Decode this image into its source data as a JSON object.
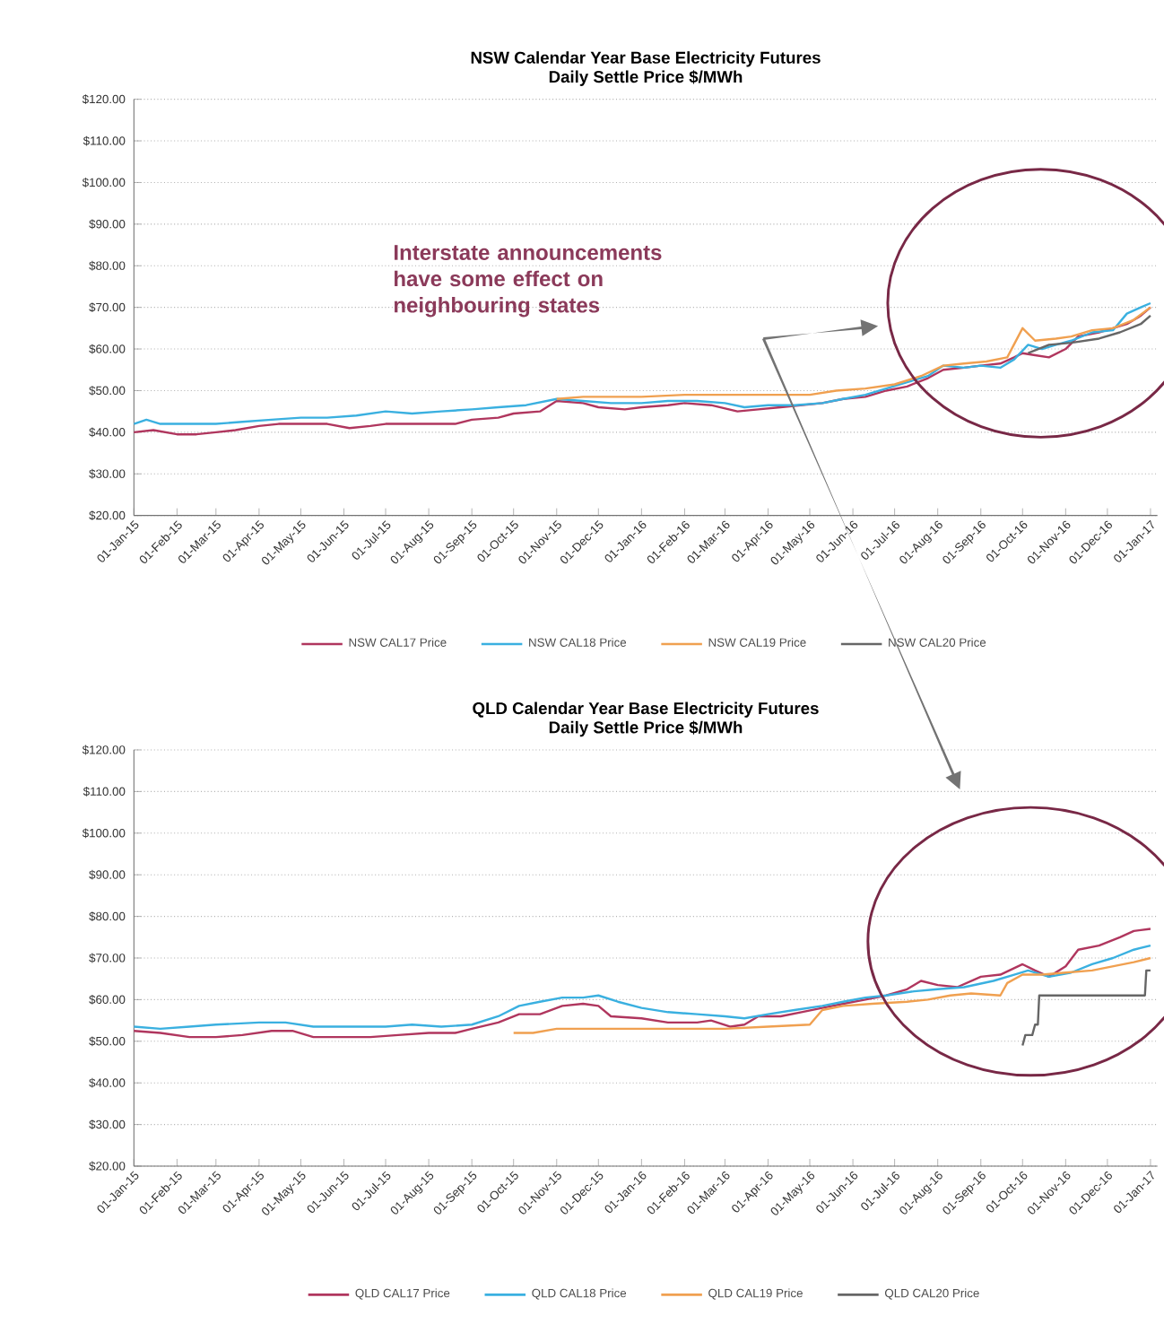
{
  "chart_data": [
    {
      "type": "line",
      "title": "NSW Calendar Year Base Electricity Futures",
      "subtitle": "Daily Settle Price $/MWh",
      "annotations": [
        "Interstate announcements have some effect on neighbouring states"
      ],
      "xlim": [
        "2015-01-01",
        "2017-01-06"
      ],
      "xticks": [
        {
          "value": "2015-01-01",
          "label": "01-Jan-15"
        },
        {
          "value": "2015-02-01",
          "label": "01-Feb-15"
        },
        {
          "value": "2015-03-01",
          "label": "01-Mar-15"
        },
        {
          "value": "2015-04-01",
          "label": "01-Apr-15"
        },
        {
          "value": "2015-05-01",
          "label": "01-May-15"
        },
        {
          "value": "2015-06-01",
          "label": "01-Jun-15"
        },
        {
          "value": "2015-07-01",
          "label": "01-Jul-15"
        },
        {
          "value": "2015-08-01",
          "label": "01-Aug-15"
        },
        {
          "value": "2015-09-01",
          "label": "01-Sep-15"
        },
        {
          "value": "2015-10-01",
          "label": "01-Oct-15"
        },
        {
          "value": "2015-11-01",
          "label": "01-Nov-15"
        },
        {
          "value": "2015-12-01",
          "label": "01-Dec-15"
        },
        {
          "value": "2016-01-01",
          "label": "01-Jan-16"
        },
        {
          "value": "2016-02-01",
          "label": "01-Feb-16"
        },
        {
          "value": "2016-03-01",
          "label": "01-Mar-16"
        },
        {
          "value": "2016-04-01",
          "label": "01-Apr-16"
        },
        {
          "value": "2016-05-01",
          "label": "01-May-16"
        },
        {
          "value": "2016-06-01",
          "label": "01-Jun-16"
        },
        {
          "value": "2016-07-01",
          "label": "01-Jul-16"
        },
        {
          "value": "2016-08-01",
          "label": "01-Aug-16"
        },
        {
          "value": "2016-09-01",
          "label": "01-Sep-16"
        },
        {
          "value": "2016-10-01",
          "label": "01-Oct-16"
        },
        {
          "value": "2016-11-01",
          "label": "01-Nov-16"
        },
        {
          "value": "2016-12-01",
          "label": "01-Dec-16"
        },
        {
          "value": "2017-01-01",
          "label": "01-Jan-17"
        }
      ],
      "ylim": [
        20,
        120
      ],
      "yticks": [
        {
          "value": 20,
          "label": "$20.00"
        },
        {
          "value": 30,
          "label": "$30.00"
        },
        {
          "value": 40,
          "label": "$40.00"
        },
        {
          "value": 50,
          "label": "$50.00"
        },
        {
          "value": 60,
          "label": "$60.00"
        },
        {
          "value": 70,
          "label": "$70.00"
        },
        {
          "value": 80,
          "label": "$80.00"
        },
        {
          "value": 90,
          "label": "$90.00"
        },
        {
          "value": 100,
          "label": "$100.00"
        },
        {
          "value": 110,
          "label": "$110.00"
        },
        {
          "value": 120,
          "label": "$120.00"
        }
      ],
      "grid": "y",
      "legend": "bottom",
      "marker": "none",
      "line_style": "solid",
      "series": [
        {
          "name": "NSW CAL17 Price",
          "color": "#b0365e",
          "x": [
            "2015-01-01",
            "2015-01-15",
            "2015-02-01",
            "2015-02-15",
            "2015-03-01",
            "2015-03-15",
            "2015-04-01",
            "2015-04-15",
            "2015-05-01",
            "2015-05-20",
            "2015-06-05",
            "2015-06-20",
            "2015-07-01",
            "2015-07-20",
            "2015-08-01",
            "2015-08-20",
            "2015-09-01",
            "2015-09-20",
            "2015-10-01",
            "2015-10-20",
            "2015-11-01",
            "2015-11-20",
            "2015-12-01",
            "2015-12-20",
            "2016-01-01",
            "2016-01-20",
            "2016-02-01",
            "2016-02-20",
            "2016-03-10",
            "2016-03-25",
            "2016-04-10",
            "2016-04-25",
            "2016-05-10",
            "2016-05-25",
            "2016-06-10",
            "2016-06-25",
            "2016-07-10",
            "2016-07-25",
            "2016-08-05",
            "2016-08-20",
            "2016-09-01",
            "2016-09-15",
            "2016-09-25",
            "2016-10-01",
            "2016-10-10",
            "2016-10-20",
            "2016-11-01",
            "2016-11-10",
            "2016-11-25",
            "2016-12-05",
            "2016-12-15",
            "2016-12-25",
            "2017-01-01"
          ],
          "values": [
            40,
            40.5,
            39.5,
            39.5,
            40,
            40.5,
            41.5,
            42,
            42,
            42,
            41,
            41.5,
            42,
            42,
            42,
            42,
            43,
            43.5,
            44.5,
            45,
            47.5,
            47,
            46,
            45.5,
            46,
            46.5,
            47,
            46.5,
            45,
            45.5,
            46,
            46.5,
            47,
            48,
            48.5,
            50,
            51,
            53,
            55,
            55.5,
            56,
            56.5,
            58,
            59,
            58.5,
            58,
            60,
            63,
            64,
            65,
            66,
            68,
            70
          ]
        },
        {
          "name": "NSW CAL18 Price",
          "color": "#3ab0e0",
          "x": [
            "2015-01-01",
            "2015-01-10",
            "2015-01-20",
            "2015-02-10",
            "2015-03-01",
            "2015-03-20",
            "2015-04-10",
            "2015-05-01",
            "2015-05-20",
            "2015-06-10",
            "2015-07-01",
            "2015-07-20",
            "2015-08-10",
            "2015-09-01",
            "2015-09-20",
            "2015-10-10",
            "2015-11-01",
            "2015-11-20",
            "2015-12-10",
            "2016-01-01",
            "2016-01-20",
            "2016-02-10",
            "2016-03-01",
            "2016-03-15",
            "2016-04-01",
            "2016-04-20",
            "2016-05-10",
            "2016-05-25",
            "2016-06-10",
            "2016-06-25",
            "2016-07-10",
            "2016-07-25",
            "2016-08-05",
            "2016-08-20",
            "2016-09-01",
            "2016-09-15",
            "2016-09-25",
            "2016-10-05",
            "2016-10-15",
            "2016-10-25",
            "2016-11-05",
            "2016-11-20",
            "2016-12-05",
            "2016-12-15",
            "2016-12-25",
            "2017-01-01"
          ],
          "values": [
            42,
            43,
            42,
            42,
            42,
            42.5,
            43,
            43.5,
            43.5,
            44,
            45,
            44.5,
            45,
            45.5,
            46,
            46.5,
            48,
            47.5,
            47,
            47,
            47.5,
            47.5,
            47,
            46,
            46.5,
            46.5,
            47,
            48,
            49,
            50.5,
            52,
            53.5,
            56,
            55.5,
            56,
            55.5,
            57.5,
            61,
            60,
            61,
            62,
            64,
            64.5,
            68.5,
            70,
            71
          ]
        },
        {
          "name": "NSW CAL19 Price",
          "color": "#f0a050",
          "x": [
            "2015-11-01",
            "2015-11-20",
            "2016-01-01",
            "2016-02-01",
            "2016-03-01",
            "2016-04-01",
            "2016-05-01",
            "2016-05-20",
            "2016-06-10",
            "2016-07-01",
            "2016-07-20",
            "2016-08-05",
            "2016-08-20",
            "2016-09-05",
            "2016-09-20",
            "2016-10-01",
            "2016-10-10",
            "2016-10-25",
            "2016-11-05",
            "2016-11-20",
            "2016-12-05",
            "2016-12-20",
            "2017-01-01"
          ],
          "values": [
            48,
            48.5,
            48.5,
            49,
            49,
            49,
            49,
            50,
            50.5,
            51.5,
            53.5,
            56,
            56.5,
            57,
            58,
            65,
            62,
            62.5,
            63,
            64.5,
            65,
            67,
            70
          ]
        },
        {
          "name": "NSW CAL20 Price",
          "color": "#666666",
          "x": [
            "2016-10-05",
            "2016-10-20",
            "2016-11-05",
            "2016-11-25",
            "2016-12-10",
            "2016-12-25",
            "2017-01-01"
          ],
          "values": [
            59,
            61,
            61.5,
            62.5,
            64,
            66,
            68
          ]
        }
      ]
    },
    {
      "type": "line",
      "title": "QLD Calendar Year Base Electricity Futures",
      "subtitle": "Daily Settle Price $/MWh",
      "xlim": [
        "2015-01-01",
        "2017-01-06"
      ],
      "xticks": [
        {
          "value": "2015-01-01",
          "label": "01-Jan-15"
        },
        {
          "value": "2015-02-01",
          "label": "01-Feb-15"
        },
        {
          "value": "2015-03-01",
          "label": "01-Mar-15"
        },
        {
          "value": "2015-04-01",
          "label": "01-Apr-15"
        },
        {
          "value": "2015-05-01",
          "label": "01-May-15"
        },
        {
          "value": "2015-06-01",
          "label": "01-Jun-15"
        },
        {
          "value": "2015-07-01",
          "label": "01-Jul-15"
        },
        {
          "value": "2015-08-01",
          "label": "01-Aug-15"
        },
        {
          "value": "2015-09-01",
          "label": "01-Sep-15"
        },
        {
          "value": "2015-10-01",
          "label": "01-Oct-15"
        },
        {
          "value": "2015-11-01",
          "label": "01-Nov-15"
        },
        {
          "value": "2015-12-01",
          "label": "01-Dec-15"
        },
        {
          "value": "2016-01-01",
          "label": "01-Jan-16"
        },
        {
          "value": "2016-02-01",
          "label": "01-Feb-16"
        },
        {
          "value": "2016-03-01",
          "label": "01-Mar-16"
        },
        {
          "value": "2016-04-01",
          "label": "01-Apr-16"
        },
        {
          "value": "2016-05-01",
          "label": "01-May-16"
        },
        {
          "value": "2016-06-01",
          "label": "01-Jun-16"
        },
        {
          "value": "2016-07-01",
          "label": "01-Jul-16"
        },
        {
          "value": "2016-08-01",
          "label": "01-Aug-16"
        },
        {
          "value": "2016-09-01",
          "label": "01-Sep-16"
        },
        {
          "value": "2016-10-01",
          "label": "01-Oct-16"
        },
        {
          "value": "2016-11-01",
          "label": "01-Nov-16"
        },
        {
          "value": "2016-12-01",
          "label": "01-Dec-16"
        },
        {
          "value": "2017-01-01",
          "label": "01-Jan-17"
        }
      ],
      "ylim": [
        20,
        120
      ],
      "yticks": [
        {
          "value": 20,
          "label": "$20.00"
        },
        {
          "value": 30,
          "label": "$30.00"
        },
        {
          "value": 40,
          "label": "$40.00"
        },
        {
          "value": 50,
          "label": "$50.00"
        },
        {
          "value": 60,
          "label": "$60.00"
        },
        {
          "value": 70,
          "label": "$70.00"
        },
        {
          "value": 80,
          "label": "$80.00"
        },
        {
          "value": 90,
          "label": "$90.00"
        },
        {
          "value": 100,
          "label": "$100.00"
        },
        {
          "value": 110,
          "label": "$110.00"
        },
        {
          "value": 120,
          "label": "$120.00"
        }
      ],
      "grid": "y",
      "legend": "bottom",
      "marker": "none",
      "line_style": "solid",
      "series": [
        {
          "name": "QLD CAL17 Price",
          "color": "#b0365e",
          "x": [
            "2015-01-01",
            "2015-01-20",
            "2015-02-10",
            "2015-03-01",
            "2015-03-20",
            "2015-04-10",
            "2015-04-25",
            "2015-05-10",
            "2015-06-01",
            "2015-06-20",
            "2015-07-10",
            "2015-08-01",
            "2015-08-20",
            "2015-09-01",
            "2015-09-20",
            "2015-10-05",
            "2015-10-20",
            "2015-11-05",
            "2015-11-20",
            "2015-12-01",
            "2015-12-10",
            "2016-01-01",
            "2016-01-20",
            "2016-02-10",
            "2016-02-20",
            "2016-03-05",
            "2016-03-15",
            "2016-03-25",
            "2016-04-10",
            "2016-04-25",
            "2016-05-10",
            "2016-05-25",
            "2016-06-10",
            "2016-06-25",
            "2016-07-10",
            "2016-07-20",
            "2016-08-01",
            "2016-08-15",
            "2016-09-01",
            "2016-09-15",
            "2016-10-01",
            "2016-10-10",
            "2016-10-20",
            "2016-11-01",
            "2016-11-10",
            "2016-11-25",
            "2016-12-10",
            "2016-12-20",
            "2017-01-01"
          ],
          "values": [
            52.5,
            52,
            51,
            51,
            51.5,
            52.5,
            52.5,
            51,
            51,
            51,
            51.5,
            52,
            52,
            53,
            54.5,
            56.5,
            56.5,
            58.5,
            59,
            58.5,
            56,
            55.5,
            54.5,
            54.5,
            55,
            53.5,
            54,
            56,
            56,
            57,
            58,
            59,
            60,
            61,
            62.5,
            64.5,
            63.5,
            63,
            65.5,
            66,
            68.5,
            67,
            65.5,
            68,
            72,
            73,
            75,
            76.5,
            77
          ]
        },
        {
          "name": "QLD CAL18 Price",
          "color": "#3ab0e0",
          "x": [
            "2015-01-01",
            "2015-01-20",
            "2015-02-10",
            "2015-03-01",
            "2015-04-01",
            "2015-04-20",
            "2015-05-10",
            "2015-06-01",
            "2015-07-01",
            "2015-07-20",
            "2015-08-10",
            "2015-09-01",
            "2015-09-20",
            "2015-10-05",
            "2015-10-20",
            "2015-11-05",
            "2015-11-20",
            "2015-12-01",
            "2015-12-15",
            "2016-01-01",
            "2016-01-20",
            "2016-02-10",
            "2016-03-01",
            "2016-03-15",
            "2016-04-01",
            "2016-04-20",
            "2016-05-10",
            "2016-05-25",
            "2016-06-10",
            "2016-06-25",
            "2016-07-15",
            "2016-08-01",
            "2016-08-20",
            "2016-09-10",
            "2016-09-25",
            "2016-10-05",
            "2016-10-20",
            "2016-11-05",
            "2016-11-20",
            "2016-12-05",
            "2016-12-20",
            "2017-01-01"
          ],
          "values": [
            53.5,
            53,
            53.5,
            54,
            54.5,
            54.5,
            53.5,
            53.5,
            53.5,
            54,
            53.5,
            54,
            56,
            58.5,
            59.5,
            60.5,
            60.5,
            61,
            59.5,
            58,
            57,
            56.5,
            56,
            55.5,
            56.5,
            57.5,
            58.5,
            59.5,
            60.5,
            61,
            62,
            62.5,
            63,
            64.5,
            66,
            67,
            65.5,
            66.5,
            68.5,
            70,
            72,
            73
          ]
        },
        {
          "name": "QLD CAL19 Price",
          "color": "#f0a050",
          "x": [
            "2015-10-01",
            "2015-10-15",
            "2015-11-01",
            "2015-12-01",
            "2016-01-01",
            "2016-02-01",
            "2016-03-01",
            "2016-04-01",
            "2016-05-01",
            "2016-05-10",
            "2016-05-25",
            "2016-06-15",
            "2016-07-10",
            "2016-07-25",
            "2016-08-10",
            "2016-08-25",
            "2016-09-15",
            "2016-09-20",
            "2016-10-01",
            "2016-10-15",
            "2016-11-01",
            "2016-11-20",
            "2016-12-05",
            "2016-12-20",
            "2017-01-01"
          ],
          "values": [
            52,
            52,
            53,
            53,
            53,
            53,
            53,
            53.5,
            54,
            57.5,
            58.5,
            59,
            59.5,
            60,
            61,
            61.5,
            61,
            64,
            66,
            66,
            66.5,
            67,
            68,
            69,
            70
          ]
        },
        {
          "name": "QLD CAL20 Price",
          "color": "#666666",
          "x": [
            "2016-10-01",
            "2016-10-03",
            "2016-10-08",
            "2016-10-10",
            "2016-10-12",
            "2016-10-13",
            "2016-12-28",
            "2016-12-29",
            "2017-01-01"
          ],
          "values": [
            49,
            51.5,
            51.5,
            54,
            54,
            61,
            61,
            67,
            67
          ]
        }
      ]
    }
  ]
}
